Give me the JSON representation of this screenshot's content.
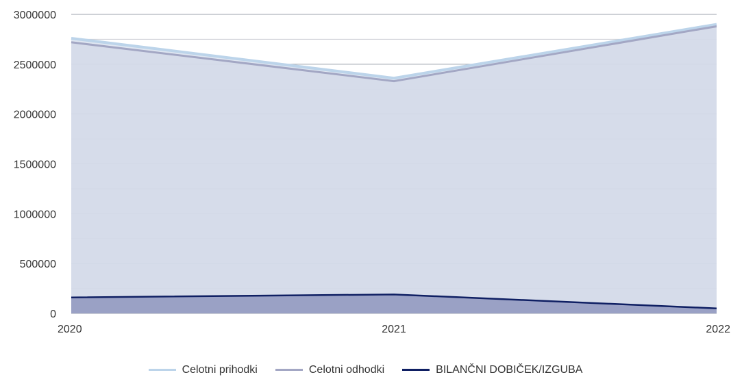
{
  "chart_data": {
    "type": "area",
    "x": [
      "2020",
      "2021",
      "2022"
    ],
    "yticks": [
      "0",
      "500000",
      "1000000",
      "1500000",
      "2000000",
      "2500000",
      "3000000"
    ],
    "ylim": [
      0,
      3000000
    ],
    "grid": true,
    "legend_position": "bottom",
    "series": [
      {
        "name": "Celotni prihodki",
        "values": [
          2760000,
          2360000,
          2900000
        ],
        "color": "#bcd4ea"
      },
      {
        "name": "Celotni odhodki",
        "values": [
          2720000,
          2330000,
          2880000
        ],
        "color": "#a3a7c4"
      },
      {
        "name": "BILANČNI DOBIČEK/IZGUBA",
        "values": [
          160000,
          190000,
          50000
        ],
        "color": "#0f1f63"
      }
    ]
  }
}
